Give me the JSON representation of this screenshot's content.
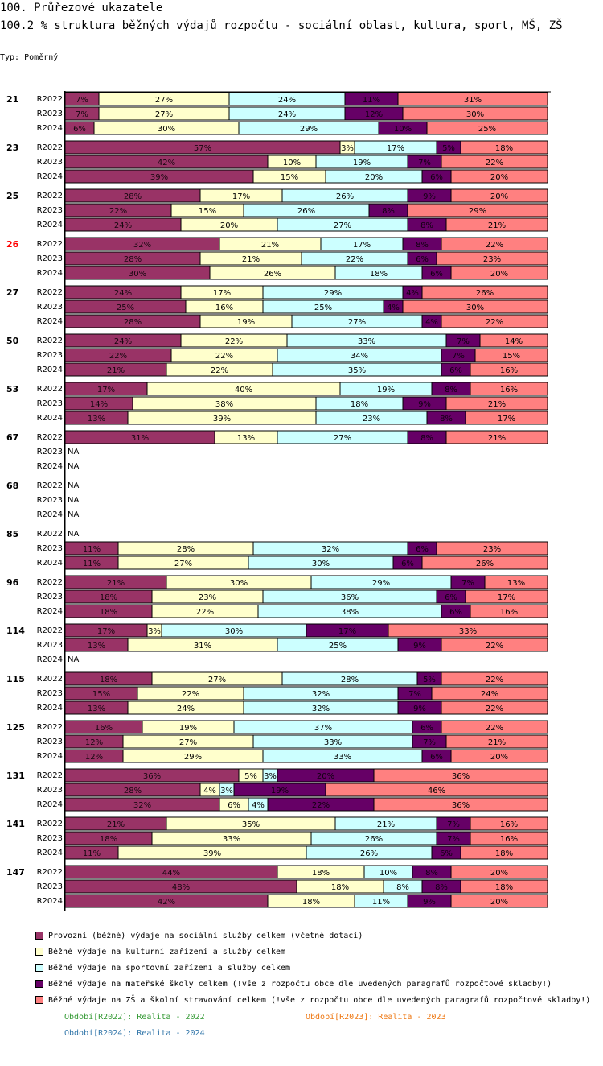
{
  "header": {
    "title": "100. Průřezové ukazatele",
    "subtitle": "100.2 % struktura běžných výdajů rozpočtu - sociální oblast, kultura, sport, MŠ, ZŠ",
    "type_label": "Typ: Poměrný"
  },
  "chart_data": {
    "type": "bar",
    "orientation": "horizontal",
    "stacked": "percent",
    "title": "100.2 % struktura běžných výdajů rozpočtu - sociální oblast, kultura, sport, MŠ, ZŠ",
    "xlim": [
      0,
      100
    ],
    "highlight_group": "26",
    "highlight_color": "#ff0000",
    "series": [
      {
        "name": "Provozní (běžné) výdaje na sociální služby celkem (včetně dotací)",
        "color": "#993366"
      },
      {
        "name": "Běžné výdaje na kulturní zařízení a služby celkem",
        "color": "#ffffcc"
      },
      {
        "name": "Běžné výdaje na sportovní zařízení a služby celkem",
        "color": "#ccffff"
      },
      {
        "name": "Běžné výdaje na mateřské školy celkem (!vše z rozpočtu obce dle uvedených paragrafů rozpočtové skladby!)",
        "color": "#660066"
      },
      {
        "name": "Běžné výdaje na ZŠ a školní stravování celkem (!vše z rozpočtu obce dle uvedených paragrafů rozpočtové skladby!)",
        "color": "#ff8080"
      }
    ],
    "groups": [
      {
        "label": "21",
        "rows": [
          {
            "period": "R2022",
            "values": [
              7,
              27,
              24,
              11,
              31
            ]
          },
          {
            "period": "R2023",
            "values": [
              7,
              27,
              24,
              12,
              30
            ]
          },
          {
            "period": "R2024",
            "values": [
              6,
              30,
              29,
              10,
              25
            ]
          }
        ]
      },
      {
        "label": "23",
        "rows": [
          {
            "period": "R2022",
            "values": [
              57,
              3,
              17,
              5,
              18
            ]
          },
          {
            "period": "R2023",
            "values": [
              42,
              10,
              19,
              7,
              22
            ]
          },
          {
            "period": "R2024",
            "values": [
              39,
              15,
              20,
              6,
              20
            ]
          }
        ]
      },
      {
        "label": "25",
        "rows": [
          {
            "period": "R2022",
            "values": [
              28,
              17,
              26,
              9,
              20
            ]
          },
          {
            "period": "R2023",
            "values": [
              22,
              15,
              26,
              8,
              29
            ]
          },
          {
            "period": "R2024",
            "values": [
              24,
              20,
              27,
              8,
              21
            ]
          }
        ]
      },
      {
        "label": "26",
        "rows": [
          {
            "period": "R2022",
            "values": [
              32,
              21,
              17,
              8,
              22
            ]
          },
          {
            "period": "R2023",
            "values": [
              28,
              21,
              22,
              6,
              23
            ]
          },
          {
            "period": "R2024",
            "values": [
              30,
              26,
              18,
              6,
              20
            ]
          }
        ]
      },
      {
        "label": "27",
        "rows": [
          {
            "period": "R2022",
            "values": [
              24,
              17,
              29,
              4,
              26
            ]
          },
          {
            "period": "R2023",
            "values": [
              25,
              16,
              25,
              4,
              30
            ]
          },
          {
            "period": "R2024",
            "values": [
              28,
              19,
              27,
              4,
              22
            ]
          }
        ]
      },
      {
        "label": "50",
        "rows": [
          {
            "period": "R2022",
            "values": [
              24,
              22,
              33,
              7,
              14
            ]
          },
          {
            "period": "R2023",
            "values": [
              22,
              22,
              34,
              7,
              15
            ]
          },
          {
            "period": "R2024",
            "values": [
              21,
              22,
              35,
              6,
              16
            ]
          }
        ]
      },
      {
        "label": "53",
        "rows": [
          {
            "period": "R2022",
            "values": [
              17,
              40,
              19,
              8,
              16
            ]
          },
          {
            "period": "R2023",
            "values": [
              14,
              38,
              18,
              9,
              21
            ]
          },
          {
            "period": "R2024",
            "values": [
              13,
              39,
              23,
              8,
              17
            ]
          }
        ]
      },
      {
        "label": "67",
        "rows": [
          {
            "period": "R2022",
            "values": [
              31,
              13,
              27,
              8,
              21
            ]
          },
          {
            "period": "R2023",
            "values": null
          },
          {
            "period": "R2024",
            "values": null
          }
        ]
      },
      {
        "label": "68",
        "rows": [
          {
            "period": "R2022",
            "values": null
          },
          {
            "period": "R2023",
            "values": null
          },
          {
            "period": "R2024",
            "values": null
          }
        ]
      },
      {
        "label": "85",
        "rows": [
          {
            "period": "R2022",
            "values": null
          },
          {
            "period": "R2023",
            "values": [
              11,
              28,
              32,
              6,
              23
            ]
          },
          {
            "period": "R2024",
            "values": [
              11,
              27,
              30,
              6,
              26
            ]
          }
        ]
      },
      {
        "label": "96",
        "rows": [
          {
            "period": "R2022",
            "values": [
              21,
              30,
              29,
              7,
              13
            ]
          },
          {
            "period": "R2023",
            "values": [
              18,
              23,
              36,
              6,
              17
            ]
          },
          {
            "period": "R2024",
            "values": [
              18,
              22,
              38,
              6,
              16
            ]
          }
        ]
      },
      {
        "label": "114",
        "rows": [
          {
            "period": "R2022",
            "values": [
              17,
              3,
              30,
              17,
              33
            ]
          },
          {
            "period": "R2023",
            "values": [
              13,
              31,
              25,
              9,
              22
            ]
          },
          {
            "period": "R2024",
            "values": null
          }
        ]
      },
      {
        "label": "115",
        "rows": [
          {
            "period": "R2022",
            "values": [
              18,
              27,
              28,
              5,
              22
            ]
          },
          {
            "period": "R2023",
            "values": [
              15,
              22,
              32,
              7,
              24
            ]
          },
          {
            "period": "R2024",
            "values": [
              13,
              24,
              32,
              9,
              22
            ]
          }
        ]
      },
      {
        "label": "125",
        "rows": [
          {
            "period": "R2022",
            "values": [
              16,
              19,
              37,
              6,
              22
            ]
          },
          {
            "period": "R2023",
            "values": [
              12,
              27,
              33,
              7,
              21
            ]
          },
          {
            "period": "R2024",
            "values": [
              12,
              29,
              33,
              6,
              20
            ]
          }
        ]
      },
      {
        "label": "131",
        "rows": [
          {
            "period": "R2022",
            "values": [
              36,
              5,
              3,
              20,
              36
            ]
          },
          {
            "period": "R2023",
            "values": [
              28,
              4,
              3,
              19,
              46
            ]
          },
          {
            "period": "R2024",
            "values": [
              32,
              6,
              4,
              22,
              36
            ]
          }
        ]
      },
      {
        "label": "141",
        "rows": [
          {
            "period": "R2022",
            "values": [
              21,
              35,
              21,
              7,
              16
            ]
          },
          {
            "period": "R2023",
            "values": [
              18,
              33,
              26,
              7,
              16
            ]
          },
          {
            "period": "R2024",
            "values": [
              11,
              39,
              26,
              6,
              18
            ]
          }
        ]
      },
      {
        "label": "147",
        "rows": [
          {
            "period": "R2022",
            "values": [
              44,
              18,
              10,
              8,
              20
            ]
          },
          {
            "period": "R2023",
            "values": [
              48,
              18,
              8,
              8,
              18
            ]
          },
          {
            "period": "R2024",
            "values": [
              42,
              18,
              11,
              9,
              20
            ]
          }
        ]
      }
    ],
    "na_label": "NA",
    "value_suffix": "%"
  },
  "legend": {
    "items": [
      {
        "label": "Provozní (běžné) výdaje na sociální služby celkem (včetně dotací)",
        "color": "#993366"
      },
      {
        "label": "Běžné výdaje na kulturní zařízení a služby celkem",
        "color": "#ffffcc"
      },
      {
        "label": "Běžné výdaje na sportovní zařízení a služby celkem",
        "color": "#ccffff"
      },
      {
        "label": "Běžné výdaje na mateřské školy celkem (!vše z rozpočtu obce dle uvedených paragrafů rozpočtové skladby!)",
        "color": "#660066"
      },
      {
        "label": "Běžné výdaje na ZŠ a školní stravování celkem (!vše z rozpočtu obce dle uvedených paragrafů rozpočtové skladby!)",
        "color": "#ff8080"
      }
    ]
  },
  "periods": [
    {
      "label": "Období[R2022]: Realita - 2022",
      "color": "#339933"
    },
    {
      "label": "Období[R2023]: Realita - 2023",
      "color": "#ee7711"
    },
    {
      "label": "Období[R2024]: Realita - 2024",
      "color": "#3377aa"
    }
  ]
}
